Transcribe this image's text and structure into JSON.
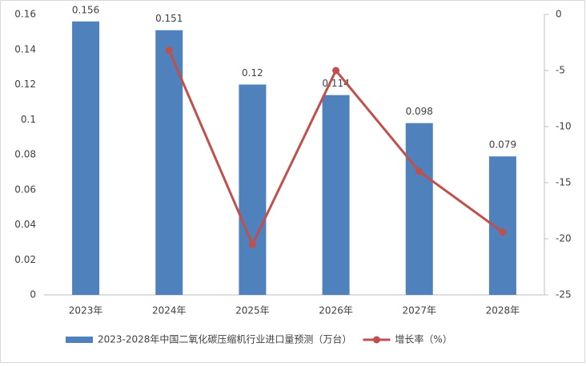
{
  "chart_data": {
    "type": "bar",
    "categories": [
      "2023年",
      "2024年",
      "2025年",
      "2026年",
      "2027年",
      "2028年"
    ],
    "series": [
      {
        "name": "2023-2028年中国二氧化碳压缩机行业进口量预测（万台）",
        "type": "bar",
        "color": "#4f81bd",
        "values": [
          0.156,
          0.151,
          0.12,
          0.114,
          0.098,
          0.079
        ]
      },
      {
        "name": "增长率（%）",
        "type": "line",
        "axis": "y2",
        "color": "#c0504d",
        "values": [
          null,
          -3.2,
          -20.5,
          -5.0,
          -14.0,
          -19.4
        ]
      }
    ],
    "ylim": [
      0,
      0.16
    ],
    "yticks": [
      0,
      0.02,
      0.04,
      0.06,
      0.08,
      0.1,
      0.12,
      0.14,
      0.16
    ],
    "y2lim": [
      -25,
      0
    ],
    "y2ticks": [
      -25,
      -20,
      -15,
      -10,
      -5,
      0
    ],
    "grid": false,
    "legend": "bottom"
  }
}
